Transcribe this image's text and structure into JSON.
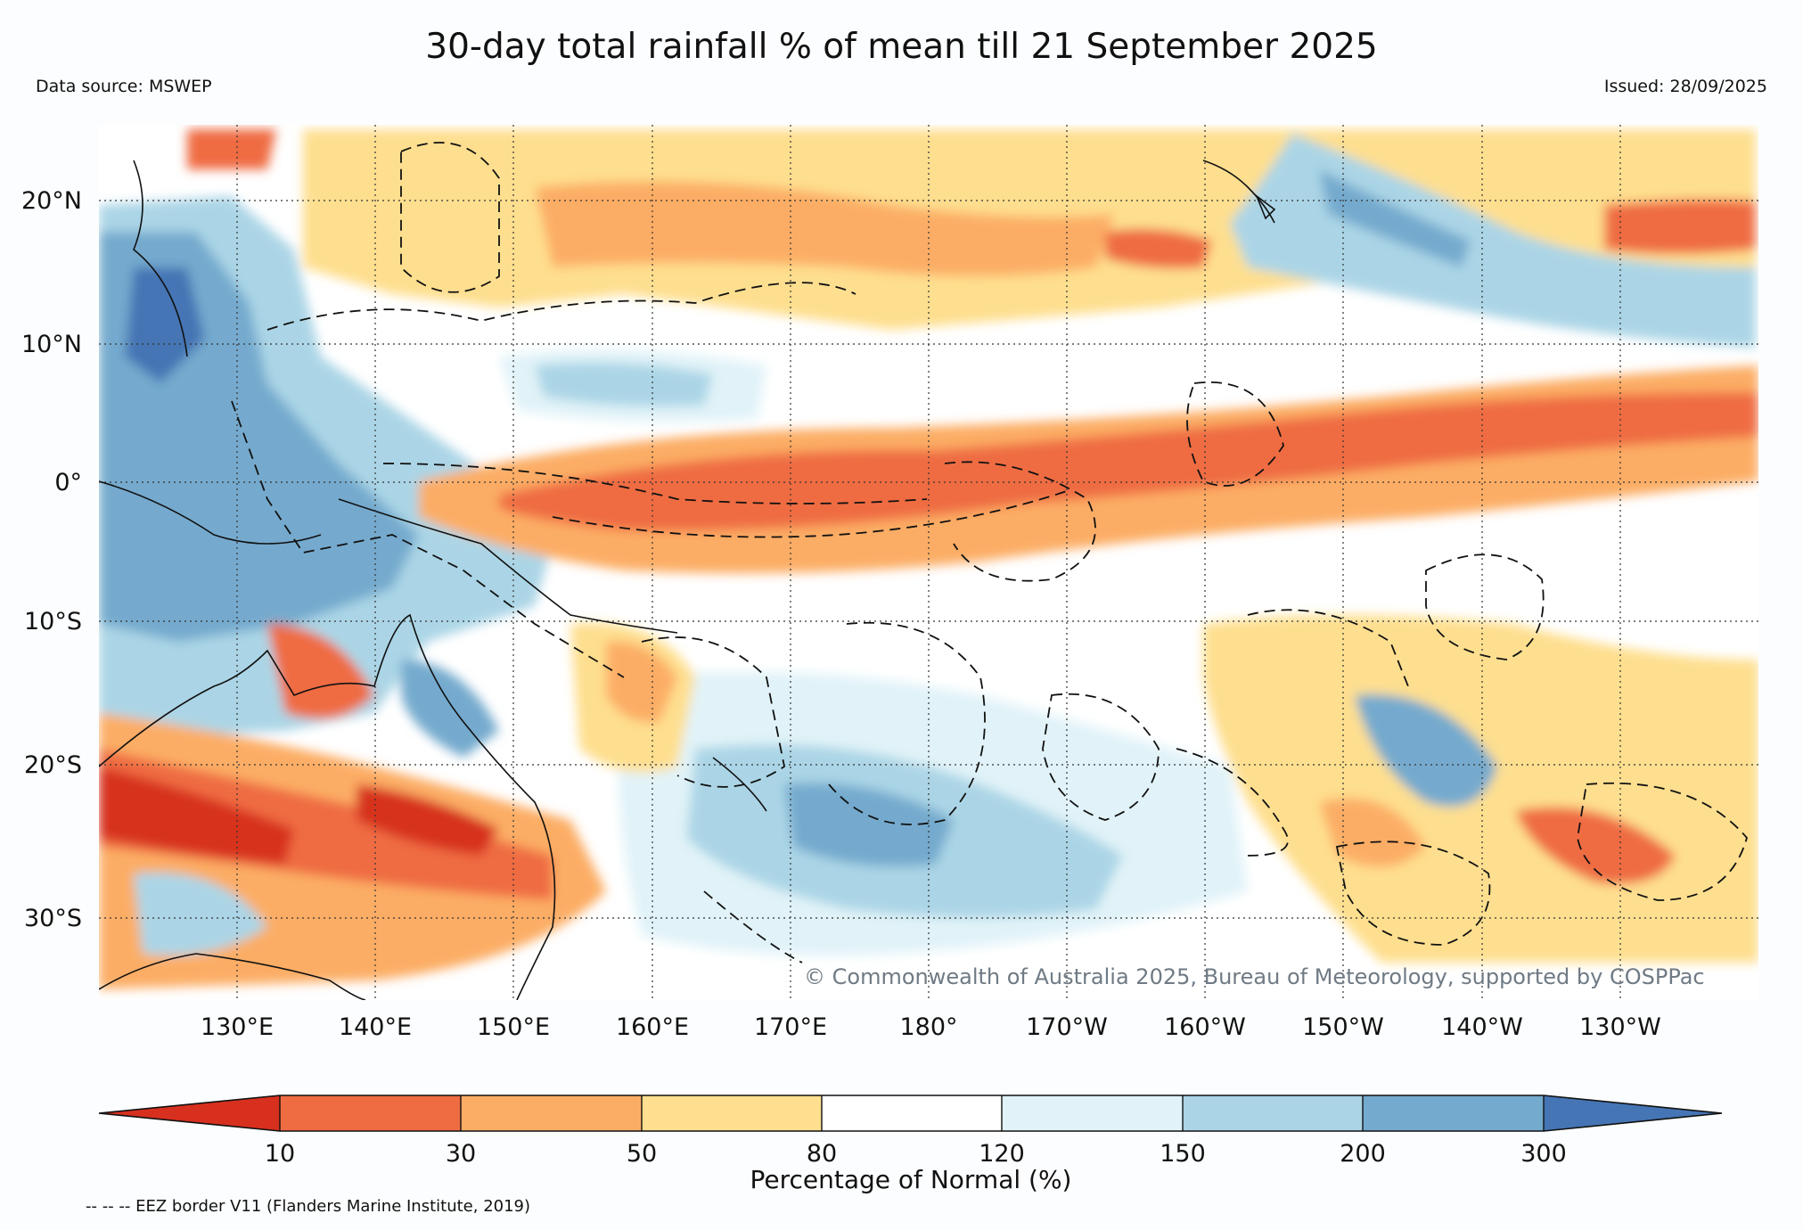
{
  "title": "30-day total rainfall % of mean till 21 September 2025",
  "data_source": "Data source: MSWEP",
  "issued": "Issued: 28/09/2025",
  "map": {
    "lon_range": [
      120,
      240
    ],
    "lat_range": [
      -36,
      25
    ],
    "lon_ticks": [
      "130°E",
      "140°E",
      "150°E",
      "160°E",
      "170°E",
      "180°",
      "170°W",
      "160°W",
      "150°W",
      "140°W",
      "130°W"
    ],
    "lat_ticks": [
      "20°N",
      "10°N",
      "0°",
      "10°S",
      "20°S",
      "30°S"
    ],
    "watermark": "© Commonwealth of Australia 2025, Bureau of Meteorology, supported by COSPPac"
  },
  "colorbar": {
    "title": "Percentage of Normal (%)",
    "ticks": [
      "10",
      "30",
      "50",
      "80",
      "120",
      "150",
      "200",
      "300"
    ],
    "colors": [
      "#d7301f",
      "#ef6c42",
      "#fcad65",
      "#fedf8f",
      "#ffffff",
      "#e1f3f8",
      "#abd5e6",
      "#74aace",
      "#4575b4"
    ]
  },
  "footnote": "-- -- -- EEZ border V11 (Flanders Marine Institute, 2019)"
}
